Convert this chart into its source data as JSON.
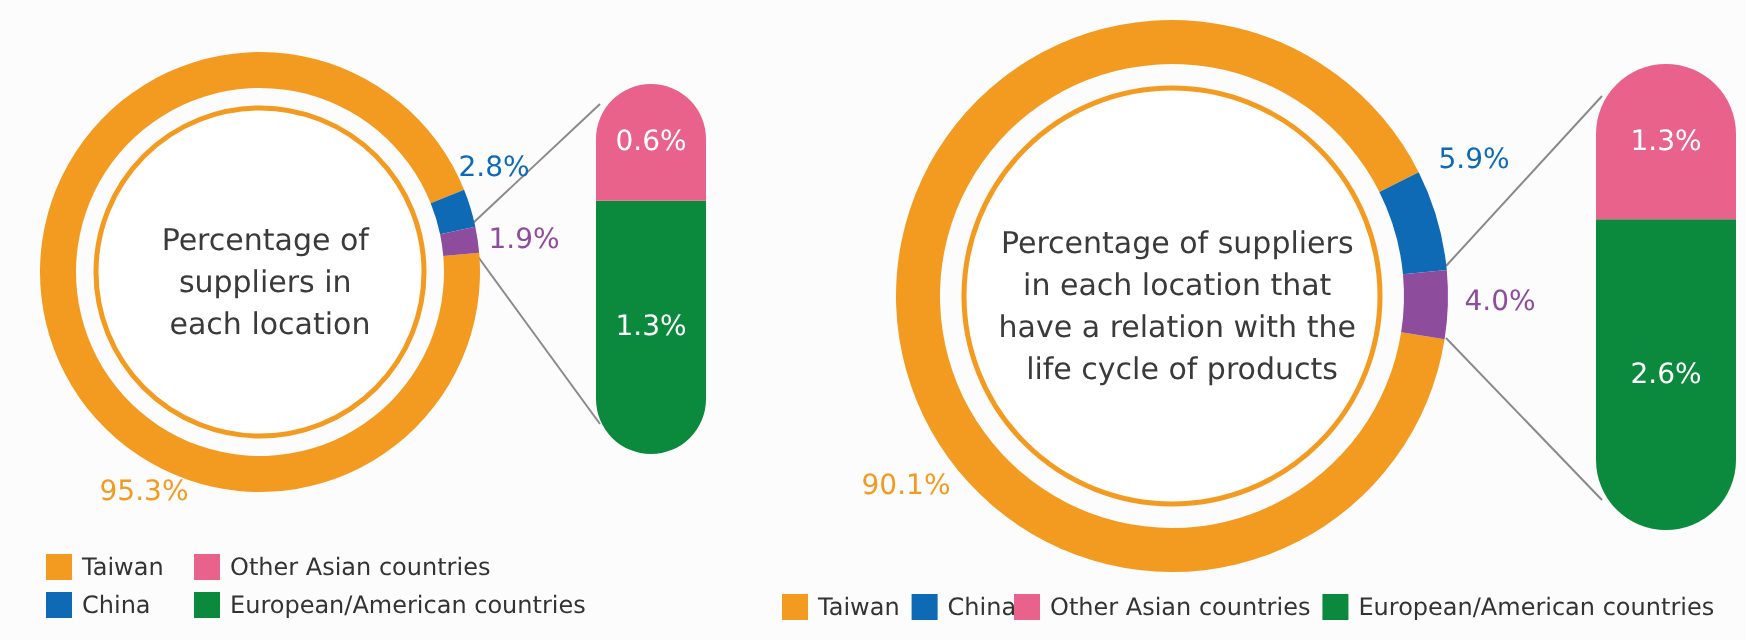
{
  "chart_data": [
    {
      "type": "donut",
      "title": "Percentage of suppliers in each location",
      "categories": [
        "Taiwan",
        "China",
        null
      ],
      "values": [
        95.3,
        2.8,
        1.9
      ],
      "colors": [
        "#f39a21",
        "#0e6ab4",
        "#8e4c9c"
      ],
      "value_labels": [
        "95.3%",
        "2.8%",
        "1.9%"
      ],
      "legend": "bottom left"
    },
    {
      "type": "bar",
      "stacked": true,
      "categories": [
        null
      ],
      "series": [
        {
          "name": "European/American countries",
          "color": "#0b8a3e",
          "values": [
            1.3
          ],
          "value_labels": [
            "1.3%"
          ]
        },
        {
          "name": "Other Asian countries",
          "color": "#e8628c",
          "values": [
            0.6
          ],
          "value_labels": [
            "0.6%"
          ]
        }
      ],
      "legend": "bottom left"
    },
    {
      "type": "donut",
      "title": "Percentage of suppliers in each location that have a relation with the life cycle of products",
      "categories": [
        "Taiwan",
        "China",
        null
      ],
      "values": [
        90.1,
        5.9,
        4.0
      ],
      "colors": [
        "#f39a21",
        "#0e6ab4",
        "#8e4c9c"
      ],
      "value_labels": [
        "90.1%",
        "5.9%",
        "4.0%"
      ],
      "legend": "bottom left"
    },
    {
      "type": "bar",
      "stacked": true,
      "categories": [
        null
      ],
      "series": [
        {
          "name": "European/American countries",
          "color": "#0b8a3e",
          "values": [
            2.6
          ],
          "value_labels": [
            "2.6%"
          ]
        },
        {
          "name": "Other Asian countries",
          "color": "#e8628c",
          "values": [
            1.3
          ],
          "value_labels": [
            "1.3%"
          ]
        }
      ],
      "legend": "bottom left"
    }
  ]
}
